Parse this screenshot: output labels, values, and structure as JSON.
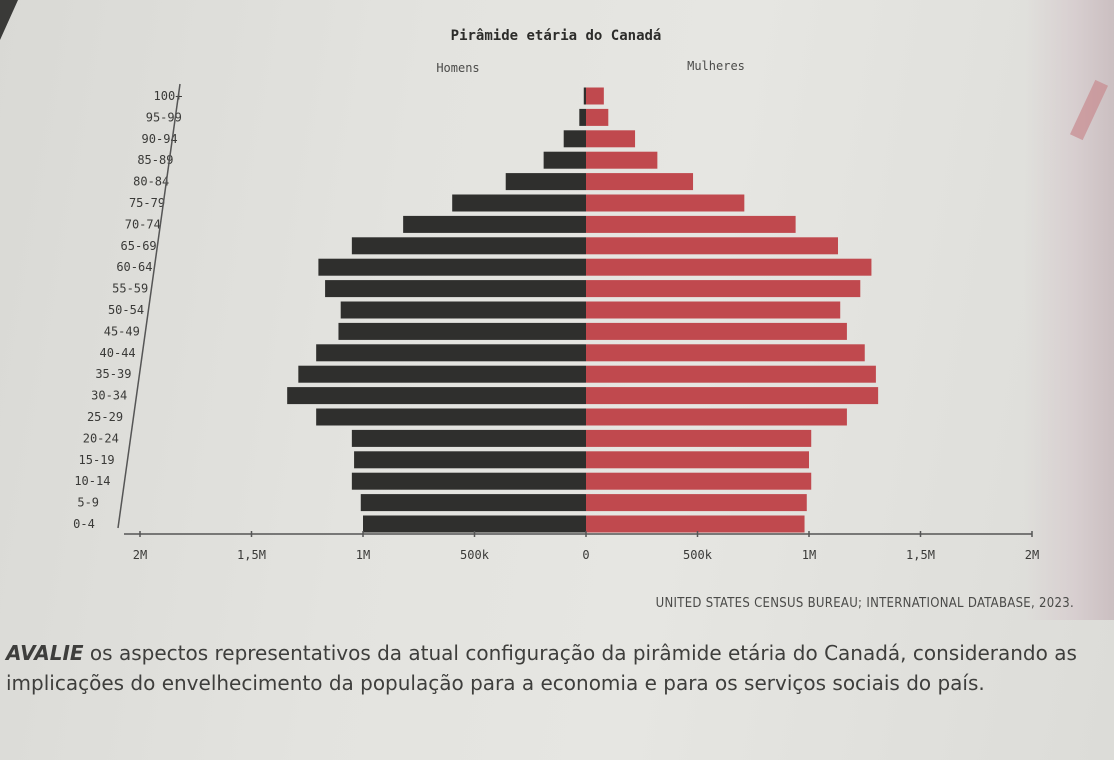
{
  "chart_data": {
    "type": "bar",
    "orientation": "horizontal",
    "layout": "population-pyramid",
    "title": "Pirâmide etária do Canadá",
    "categories": [
      "0-4",
      "5-9",
      "10-14",
      "15-19",
      "20-24",
      "25-29",
      "30-34",
      "35-39",
      "40-44",
      "45-49",
      "50-54",
      "55-59",
      "60-64",
      "65-69",
      "70-74",
      "75-79",
      "80-84",
      "85-89",
      "90-94",
      "95-99",
      "100+"
    ],
    "series": [
      {
        "name": "Homens",
        "color": "#2f2f2d",
        "values": [
          1000000,
          1010000,
          1050000,
          1040000,
          1050000,
          1210000,
          1340000,
          1290000,
          1210000,
          1110000,
          1100000,
          1170000,
          1200000,
          1050000,
          820000,
          600000,
          360000,
          190000,
          100000,
          30000,
          10000
        ]
      },
      {
        "name": "Mulheres",
        "color": "#c0494e",
        "values": [
          980000,
          990000,
          1010000,
          1000000,
          1010000,
          1170000,
          1310000,
          1300000,
          1250000,
          1170000,
          1140000,
          1230000,
          1280000,
          1130000,
          940000,
          710000,
          480000,
          320000,
          220000,
          100000,
          80000
        ]
      }
    ],
    "xticks": [
      "2M",
      "1,5M",
      "1M",
      "500k",
      "0",
      "500k",
      "1M",
      "1,5M",
      "2M"
    ],
    "xlim": [
      -2000000,
      2000000
    ],
    "legend": "top",
    "grid": false
  },
  "source": "UNITED STATES CENSUS BUREAU; INTERNATIONAL DATABASE, 2023.",
  "question": {
    "lead": "AVALIE",
    "text": " os aspectos representativos da atual configuração da pirâmide etária do Canadá, considerando as implicações do envelhecimento da população para a economia e para os serviços sociais do país."
  }
}
